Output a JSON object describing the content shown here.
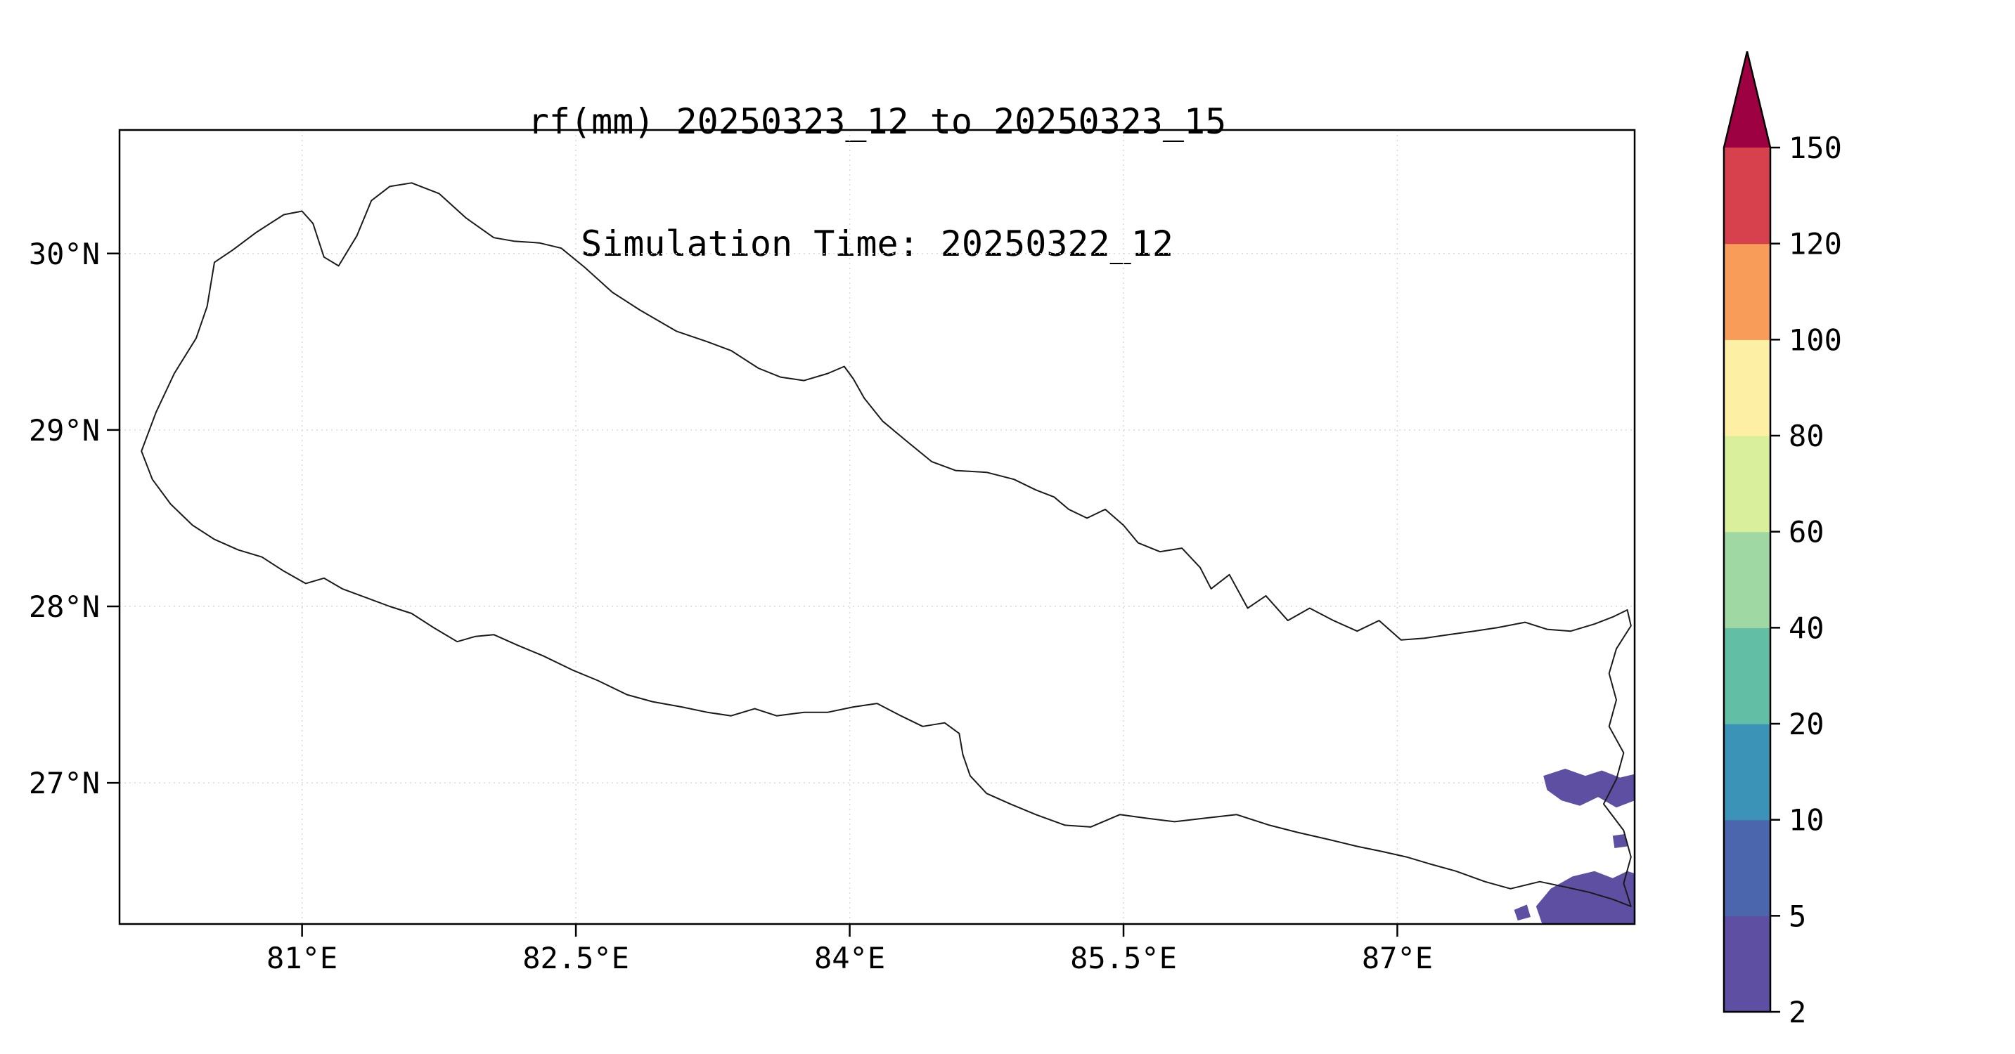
{
  "figure": {
    "title_line1": "rf(mm) 20250323_12 to 20250323_15",
    "title_line2": "Simulation Time: 20250322_12"
  },
  "chart_data": {
    "type": "heatmap",
    "title": "rf(mm) 20250323_12 to 20250323_15",
    "subtitle": "Simulation Time: 20250322_12",
    "variable": "rf(mm)",
    "region": "Nepal",
    "x_axis": {
      "label": "",
      "tick_labels": [
        "81°E",
        "82.5°E",
        "84°E",
        "85.5°E",
        "87°E"
      ],
      "tick_values": [
        81,
        82.5,
        84,
        85.5,
        87
      ],
      "range": [
        80.0,
        88.3
      ]
    },
    "y_axis": {
      "label": "",
      "tick_labels": [
        "30°N",
        "29°N",
        "28°N",
        "27°N"
      ],
      "tick_values": [
        30,
        29,
        28,
        27
      ],
      "range": [
        26.2,
        30.7
      ]
    },
    "grid": true,
    "colorbar": {
      "orientation": "vertical",
      "levels": [
        2,
        5,
        10,
        20,
        40,
        60,
        80,
        100,
        120,
        150
      ],
      "tick_labels": [
        "2",
        "5",
        "10",
        "20",
        "40",
        "60",
        "80",
        "100",
        "120",
        "150"
      ],
      "bin_colors": [
        "#5e4fa2",
        "#4c66ae",
        "#3b93b8",
        "#62bfa6",
        "#a0d8a4",
        "#d9ef9b",
        "#fdf0a4",
        "#f89c5a",
        "#d7414e"
      ],
      "extend_max_color": "#9e0142",
      "outline_color": "#000000"
    },
    "rainfall_regions": [
      {
        "bin": "2-5",
        "color": "#5e4fa2",
        "polygon": [
          [
            87.8,
            27.04
          ],
          [
            87.92,
            27.08
          ],
          [
            88.03,
            27.04
          ],
          [
            88.12,
            27.07
          ],
          [
            88.22,
            27.03
          ],
          [
            88.3,
            27.05
          ],
          [
            88.3,
            26.9
          ],
          [
            88.2,
            26.86
          ],
          [
            88.1,
            26.92
          ],
          [
            88.0,
            26.87
          ],
          [
            87.9,
            26.9
          ],
          [
            87.82,
            26.96
          ]
        ]
      },
      {
        "bin": "2-5",
        "color": "#5e4fa2",
        "polygon": [
          [
            88.18,
            26.7
          ],
          [
            88.25,
            26.71
          ],
          [
            88.26,
            26.64
          ],
          [
            88.19,
            26.63
          ]
        ]
      },
      {
        "bin": "2-5",
        "color": "#5e4fa2",
        "polygon": [
          [
            87.8,
            26.18
          ],
          [
            87.76,
            26.3
          ],
          [
            87.84,
            26.4
          ],
          [
            87.96,
            26.47
          ],
          [
            88.08,
            26.5
          ],
          [
            88.18,
            26.46
          ],
          [
            88.26,
            26.5
          ],
          [
            88.32,
            26.48
          ],
          [
            88.32,
            26.18
          ]
        ]
      },
      {
        "bin": "2-5",
        "color": "#5e4fa2",
        "polygon": [
          [
            87.64,
            26.28
          ],
          [
            87.71,
            26.31
          ],
          [
            87.73,
            26.24
          ],
          [
            87.66,
            26.22
          ]
        ]
      }
    ],
    "nepal_outline": [
      [
        80.12,
        28.88
      ],
      [
        80.2,
        29.1
      ],
      [
        80.3,
        29.32
      ],
      [
        80.42,
        29.52
      ],
      [
        80.48,
        29.7
      ],
      [
        80.52,
        29.95
      ],
      [
        80.62,
        30.02
      ],
      [
        80.75,
        30.12
      ],
      [
        80.9,
        30.22
      ],
      [
        81.0,
        30.24
      ],
      [
        81.06,
        30.17
      ],
      [
        81.12,
        29.98
      ],
      [
        81.2,
        29.93
      ],
      [
        81.3,
        30.1
      ],
      [
        81.38,
        30.3
      ],
      [
        81.48,
        30.38
      ],
      [
        81.6,
        30.4
      ],
      [
        81.75,
        30.34
      ],
      [
        81.9,
        30.2
      ],
      [
        82.05,
        30.09
      ],
      [
        82.16,
        30.07
      ],
      [
        82.3,
        30.06
      ],
      [
        82.42,
        30.03
      ],
      [
        82.55,
        29.92
      ],
      [
        82.7,
        29.78
      ],
      [
        82.85,
        29.68
      ],
      [
        83.05,
        29.56
      ],
      [
        83.22,
        29.5
      ],
      [
        83.35,
        29.45
      ],
      [
        83.5,
        29.35
      ],
      [
        83.62,
        29.3
      ],
      [
        83.75,
        29.28
      ],
      [
        83.88,
        29.32
      ],
      [
        83.97,
        29.36
      ],
      [
        84.02,
        29.29
      ],
      [
        84.08,
        29.18
      ],
      [
        84.18,
        29.05
      ],
      [
        84.32,
        28.93
      ],
      [
        84.45,
        28.82
      ],
      [
        84.58,
        28.77
      ],
      [
        84.75,
        28.76
      ],
      [
        84.9,
        28.72
      ],
      [
        85.02,
        28.66
      ],
      [
        85.12,
        28.62
      ],
      [
        85.2,
        28.55
      ],
      [
        85.3,
        28.5
      ],
      [
        85.4,
        28.55
      ],
      [
        85.5,
        28.46
      ],
      [
        85.58,
        28.36
      ],
      [
        85.7,
        28.31
      ],
      [
        85.82,
        28.33
      ],
      [
        85.92,
        28.22
      ],
      [
        85.98,
        28.1
      ],
      [
        86.08,
        28.18
      ],
      [
        86.18,
        27.99
      ],
      [
        86.28,
        28.06
      ],
      [
        86.4,
        27.92
      ],
      [
        86.52,
        27.99
      ],
      [
        86.65,
        27.92
      ],
      [
        86.78,
        27.86
      ],
      [
        86.9,
        27.92
      ],
      [
        87.02,
        27.81
      ],
      [
        87.15,
        27.82
      ],
      [
        87.28,
        27.84
      ],
      [
        87.42,
        27.86
      ],
      [
        87.55,
        27.88
      ],
      [
        87.7,
        27.91
      ],
      [
        87.82,
        27.87
      ],
      [
        87.95,
        27.86
      ],
      [
        88.08,
        27.9
      ],
      [
        88.18,
        27.94
      ],
      [
        88.26,
        27.98
      ],
      [
        88.28,
        27.89
      ],
      [
        88.2,
        27.76
      ],
      [
        88.16,
        27.62
      ],
      [
        88.2,
        27.47
      ],
      [
        88.16,
        27.32
      ],
      [
        88.24,
        27.17
      ],
      [
        88.2,
        27.02
      ],
      [
        88.13,
        26.88
      ],
      [
        88.24,
        26.73
      ],
      [
        88.28,
        26.58
      ],
      [
        88.24,
        26.43
      ],
      [
        88.28,
        26.3
      ],
      [
        88.18,
        26.34
      ],
      [
        88.05,
        26.38
      ],
      [
        87.92,
        26.41
      ],
      [
        87.78,
        26.44
      ],
      [
        87.62,
        26.4
      ],
      [
        87.48,
        26.44
      ],
      [
        87.32,
        26.5
      ],
      [
        87.18,
        26.54
      ],
      [
        87.05,
        26.58
      ],
      [
        86.92,
        26.61
      ],
      [
        86.78,
        26.64
      ],
      [
        86.62,
        26.68
      ],
      [
        86.45,
        26.72
      ],
      [
        86.3,
        26.76
      ],
      [
        86.12,
        26.82
      ],
      [
        85.95,
        26.8
      ],
      [
        85.78,
        26.78
      ],
      [
        85.62,
        26.8
      ],
      [
        85.48,
        26.82
      ],
      [
        85.32,
        26.75
      ],
      [
        85.18,
        26.76
      ],
      [
        85.02,
        26.82
      ],
      [
        84.88,
        26.88
      ],
      [
        84.75,
        26.94
      ],
      [
        84.66,
        27.04
      ],
      [
        84.62,
        27.16
      ],
      [
        84.6,
        27.28
      ],
      [
        84.52,
        27.34
      ],
      [
        84.4,
        27.32
      ],
      [
        84.28,
        27.38
      ],
      [
        84.15,
        27.45
      ],
      [
        84.02,
        27.43
      ],
      [
        83.88,
        27.4
      ],
      [
        83.75,
        27.4
      ],
      [
        83.6,
        27.38
      ],
      [
        83.48,
        27.42
      ],
      [
        83.35,
        27.38
      ],
      [
        83.22,
        27.4
      ],
      [
        83.08,
        27.43
      ],
      [
        82.92,
        27.46
      ],
      [
        82.78,
        27.5
      ],
      [
        82.62,
        27.58
      ],
      [
        82.48,
        27.64
      ],
      [
        82.32,
        27.72
      ],
      [
        82.18,
        27.78
      ],
      [
        82.05,
        27.84
      ],
      [
        81.95,
        27.83
      ],
      [
        81.85,
        27.8
      ],
      [
        81.72,
        27.88
      ],
      [
        81.6,
        27.96
      ],
      [
        81.48,
        28.0
      ],
      [
        81.35,
        28.05
      ],
      [
        81.22,
        28.1
      ],
      [
        81.12,
        28.16
      ],
      [
        81.02,
        28.13
      ],
      [
        80.9,
        28.2
      ],
      [
        80.78,
        28.28
      ],
      [
        80.65,
        28.32
      ],
      [
        80.52,
        28.38
      ],
      [
        80.4,
        28.46
      ],
      [
        80.28,
        28.58
      ],
      [
        80.18,
        28.72
      ],
      [
        80.12,
        28.88
      ]
    ]
  },
  "colors": {
    "background": "#ffffff",
    "border": "#000000",
    "coastline": "#1a1a1a",
    "grid": "#d9d9d9"
  }
}
